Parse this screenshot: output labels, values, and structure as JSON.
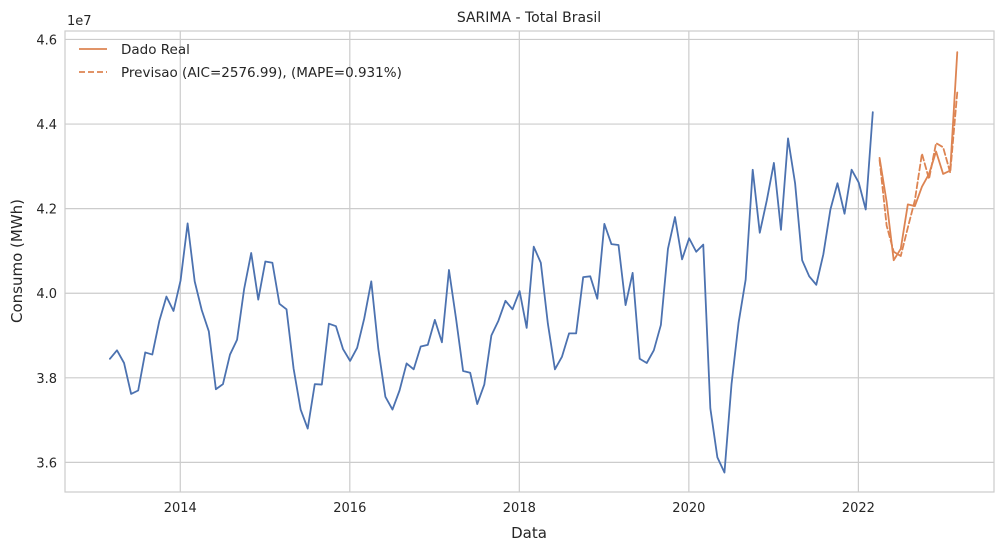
{
  "chart_data": {
    "type": "line",
    "title": "SARIMA - Total Brasil",
    "xlabel": "Data",
    "ylabel": "Consumo (MWh)",
    "y_scale_label": "1e7",
    "xlim": [
      2012.64,
      2023.6
    ],
    "ylim": [
      35.3,
      46.2
    ],
    "xticks": [
      {
        "value": 2014,
        "label": "2014"
      },
      {
        "value": 2016,
        "label": "2016"
      },
      {
        "value": 2018,
        "label": "2018"
      },
      {
        "value": 2020,
        "label": "2020"
      },
      {
        "value": 2022,
        "label": "2022"
      }
    ],
    "yticks": [
      {
        "value": 36,
        "label": "3.6"
      },
      {
        "value": 38,
        "label": "3.8"
      },
      {
        "value": 40,
        "label": "4.0"
      },
      {
        "value": 42,
        "label": "4.2"
      },
      {
        "value": 44,
        "label": "4.4"
      },
      {
        "value": 46,
        "label": "4.6"
      }
    ],
    "grid": true,
    "legend_position": "top-left",
    "series": [
      {
        "key": "history",
        "color": "#4c72b0",
        "style": "solid",
        "x_start": 2013.17,
        "x_step": 0.0833333,
        "values": [
          38.45,
          38.65,
          38.35,
          37.62,
          37.7,
          38.6,
          38.55,
          39.35,
          39.92,
          39.58,
          40.3,
          41.65,
          40.28,
          39.6,
          39.1,
          37.73,
          37.85,
          38.55,
          38.9,
          40.1,
          40.95,
          39.85,
          40.75,
          40.72,
          39.75,
          39.62,
          38.22,
          37.25,
          36.8,
          37.85,
          37.84,
          39.28,
          39.22,
          38.68,
          38.4,
          38.71,
          39.4,
          40.28,
          38.68,
          37.55,
          37.25,
          37.7,
          38.34,
          38.2,
          38.74,
          38.78,
          39.37,
          38.84,
          40.55,
          39.4,
          38.16,
          38.12,
          37.38,
          37.84,
          39.0,
          39.35,
          39.82,
          39.62,
          40.05,
          39.18,
          41.1,
          40.72,
          39.28,
          38.2,
          38.5,
          39.05,
          39.05,
          40.38,
          40.4,
          39.87,
          41.64,
          41.16,
          41.14,
          39.72,
          40.48,
          38.45,
          38.35,
          38.65,
          39.25,
          41.05,
          41.8,
          40.8,
          41.3,
          40.98,
          41.15,
          37.28,
          36.12,
          35.76,
          37.85,
          39.3,
          40.32,
          42.92,
          41.43,
          42.2,
          43.08,
          41.5,
          43.66,
          42.6,
          40.78,
          40.4,
          40.2,
          40.92,
          41.98,
          42.6,
          41.88,
          42.92,
          42.62,
          41.98,
          44.28
        ]
      },
      {
        "key": "real",
        "name": "Dado Real",
        "color": "#dd8452",
        "style": "solid",
        "x_start": 2022.25,
        "x_step": 0.0833333,
        "values": [
          43.2,
          42.16,
          40.78,
          41.05,
          42.1,
          42.06,
          42.52,
          42.82,
          43.35,
          42.82,
          42.9,
          45.7
        ]
      },
      {
        "key": "forecast",
        "name": "Previsao (AIC=2576.99), (MAPE=0.931%)",
        "color": "#dd8452",
        "style": "dashed",
        "x_start": 2022.25,
        "x_step": 0.0833333,
        "values": [
          43.15,
          41.6,
          40.98,
          40.88,
          41.55,
          42.2,
          43.3,
          42.7,
          43.55,
          43.45,
          42.85,
          44.75
        ]
      }
    ]
  }
}
